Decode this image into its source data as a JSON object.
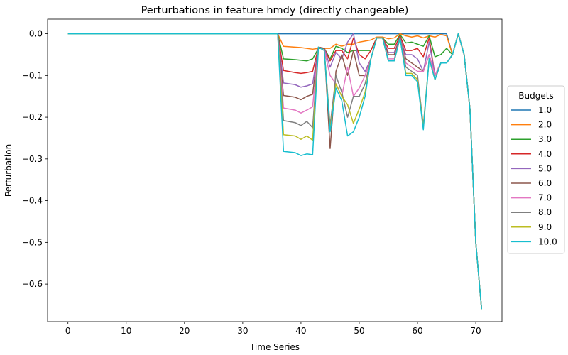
{
  "chart_data": {
    "type": "line",
    "title": "Perturbations in feature hmdy (directly changeable)",
    "xlabel": "Time Series",
    "ylabel": "Perturbation",
    "xlim": [
      -3.5,
      74.5
    ],
    "ylim": [
      -0.69,
      0.035
    ],
    "xticks": [
      0,
      10,
      20,
      30,
      40,
      50,
      60,
      70
    ],
    "yticks": [
      0.0,
      -0.1,
      -0.2,
      -0.3,
      -0.4,
      -0.5,
      -0.6
    ],
    "ytick_labels": [
      "0.0",
      "−0.1",
      "−0.2",
      "−0.3",
      "−0.4",
      "−0.5",
      "−0.6"
    ],
    "grid": false,
    "legend": {
      "title": "Budgets",
      "placement": "outside-right"
    },
    "colors": [
      "#1f77b4",
      "#ff7f0e",
      "#2ca02c",
      "#d62728",
      "#9467bd",
      "#8c564b",
      "#e377c2",
      "#7f7f7f",
      "#bcbd22",
      "#17becf"
    ],
    "series": [
      {
        "name": "1.0",
        "x": [
          0,
          36,
          65,
          66,
          67,
          68,
          69,
          70,
          71
        ],
        "values": [
          0,
          0,
          0,
          -0.05,
          0,
          -0.05,
          -0.18,
          -0.5,
          -0.66
        ]
      },
      {
        "name": "2.0",
        "x": [
          0,
          36,
          37,
          40,
          42,
          43,
          44,
          45,
          46,
          47,
          48,
          49,
          50,
          52,
          53,
          54,
          55,
          56,
          57,
          58,
          59,
          60,
          61,
          62,
          63,
          64,
          65,
          66,
          67,
          68,
          69,
          70,
          71
        ],
        "values": [
          0,
          0,
          -0.03,
          -0.033,
          -0.037,
          -0.035,
          -0.035,
          -0.035,
          -0.025,
          -0.03,
          -0.025,
          -0.025,
          -0.02,
          -0.015,
          -0.008,
          -0.008,
          -0.012,
          -0.01,
          0,
          -0.005,
          -0.008,
          -0.005,
          -0.01,
          -0.005,
          -0.008,
          -0.002,
          -0.005,
          -0.05,
          0,
          -0.05,
          -0.18,
          -0.5,
          -0.66
        ]
      },
      {
        "name": "3.0",
        "x": [
          0,
          36,
          37,
          39,
          41,
          42,
          43,
          44,
          45,
          46,
          47,
          48,
          49,
          50,
          52,
          53,
          54,
          55,
          56,
          57,
          58,
          59,
          60,
          61,
          62,
          63,
          64,
          65,
          66,
          67,
          68,
          69,
          70,
          71
        ],
        "values": [
          0,
          0,
          -0.06,
          -0.062,
          -0.065,
          -0.06,
          -0.035,
          -0.035,
          -0.06,
          -0.03,
          -0.035,
          -0.045,
          -0.04,
          -0.04,
          -0.04,
          -0.01,
          -0.01,
          -0.025,
          -0.025,
          -0.002,
          -0.022,
          -0.02,
          -0.025,
          -0.03,
          -0.005,
          -0.055,
          -0.05,
          -0.035,
          -0.05,
          0,
          -0.05,
          -0.18,
          -0.5,
          -0.66
        ]
      },
      {
        "name": "4.0",
        "x": [
          0,
          36,
          37,
          39,
          40,
          41,
          42,
          43,
          44,
          45,
          46,
          47,
          48,
          49,
          50,
          51,
          52,
          53,
          54,
          55,
          56,
          57,
          58,
          59,
          60,
          61,
          62,
          63,
          64,
          65,
          66,
          67,
          68,
          69,
          70,
          71
        ],
        "values": [
          0,
          0,
          -0.088,
          -0.093,
          -0.095,
          -0.093,
          -0.09,
          -0.032,
          -0.035,
          -0.065,
          -0.04,
          -0.04,
          -0.06,
          -0.01,
          -0.05,
          -0.06,
          -0.04,
          -0.01,
          -0.01,
          -0.035,
          -0.035,
          -0.005,
          -0.04,
          -0.04,
          -0.035,
          -0.055,
          -0.01,
          -0.1,
          -0.07,
          -0.07,
          -0.05,
          0,
          -0.05,
          -0.18,
          -0.5,
          -0.66
        ]
      },
      {
        "name": "5.0",
        "x": [
          0,
          36,
          37,
          39,
          40,
          41,
          42,
          43,
          44,
          45,
          46,
          47,
          48,
          49,
          50,
          51,
          52,
          53,
          54,
          55,
          56,
          57,
          58,
          59,
          60,
          61,
          62,
          63,
          64,
          65,
          66,
          67,
          68,
          69,
          70,
          71
        ],
        "values": [
          0,
          0,
          -0.118,
          -0.122,
          -0.128,
          -0.125,
          -0.12,
          -0.032,
          -0.035,
          -0.08,
          -0.045,
          -0.06,
          -0.02,
          0,
          -0.07,
          -0.09,
          -0.06,
          -0.01,
          -0.01,
          -0.045,
          -0.045,
          -0.01,
          -0.05,
          -0.05,
          -0.06,
          -0.09,
          -0.02,
          -0.1,
          -0.07,
          -0.07,
          -0.05,
          0,
          -0.05,
          -0.18,
          -0.5,
          -0.66
        ]
      },
      {
        "name": "6.0",
        "x": [
          0,
          36,
          37,
          39,
          40,
          41,
          42,
          43,
          44,
          45,
          46,
          47,
          48,
          49,
          50,
          51,
          52,
          53,
          54,
          55,
          56,
          57,
          58,
          59,
          60,
          61,
          62,
          63,
          64,
          65,
          66,
          67,
          68,
          69,
          70,
          71
        ],
        "values": [
          0,
          0,
          -0.148,
          -0.152,
          -0.158,
          -0.15,
          -0.145,
          -0.032,
          -0.035,
          -0.275,
          -0.09,
          -0.05,
          -0.1,
          -0.04,
          -0.1,
          -0.1,
          -0.06,
          -0.01,
          -0.01,
          -0.05,
          -0.05,
          -0.01,
          -0.06,
          -0.07,
          -0.08,
          -0.09,
          -0.05,
          -0.1,
          -0.07,
          -0.07,
          -0.05,
          0,
          -0.05,
          -0.18,
          -0.5,
          -0.66
        ]
      },
      {
        "name": "7.0",
        "x": [
          0,
          36,
          37,
          39,
          40,
          41,
          42,
          43,
          44,
          45,
          46,
          47,
          48,
          49,
          50,
          51,
          52,
          53,
          54,
          55,
          56,
          57,
          58,
          59,
          60,
          61,
          62,
          63,
          64,
          65,
          66,
          67,
          68,
          69,
          70,
          71
        ],
        "values": [
          0,
          0,
          -0.178,
          -0.183,
          -0.19,
          -0.183,
          -0.175,
          -0.032,
          -0.04,
          -0.1,
          -0.12,
          -0.15,
          -0.08,
          -0.15,
          -0.13,
          -0.1,
          -0.06,
          -0.01,
          -0.01,
          -0.06,
          -0.06,
          -0.01,
          -0.07,
          -0.08,
          -0.09,
          -0.09,
          -0.05,
          -0.1,
          -0.07,
          -0.07,
          -0.05,
          0,
          -0.05,
          -0.18,
          -0.5,
          -0.66
        ]
      },
      {
        "name": "8.0",
        "x": [
          0,
          36,
          37,
          39,
          40,
          41,
          42,
          43,
          44,
          45,
          46,
          47,
          48,
          49,
          50,
          51,
          52,
          53,
          54,
          55,
          56,
          57,
          58,
          59,
          60,
          61,
          62,
          63,
          64,
          65,
          66,
          67,
          68,
          69,
          70,
          71
        ],
        "values": [
          0,
          0,
          -0.208,
          -0.213,
          -0.22,
          -0.21,
          -0.225,
          -0.032,
          -0.04,
          -0.22,
          -0.1,
          -0.14,
          -0.2,
          -0.15,
          -0.15,
          -0.12,
          -0.06,
          -0.01,
          -0.01,
          -0.065,
          -0.065,
          -0.01,
          -0.08,
          -0.09,
          -0.1,
          -0.22,
          -0.06,
          -0.11,
          -0.07,
          -0.07,
          -0.05,
          0,
          -0.05,
          -0.18,
          -0.5,
          -0.66
        ]
      },
      {
        "name": "9.0",
        "x": [
          0,
          36,
          37,
          39,
          40,
          41,
          42,
          43,
          44,
          45,
          46,
          47,
          48,
          49,
          50,
          51,
          52,
          53,
          54,
          55,
          56,
          57,
          58,
          59,
          60,
          61,
          62,
          63,
          64,
          65,
          66,
          67,
          68,
          69,
          70,
          71
        ],
        "values": [
          0,
          0,
          -0.242,
          -0.245,
          -0.253,
          -0.245,
          -0.255,
          -0.032,
          -0.04,
          -0.23,
          -0.12,
          -0.15,
          -0.17,
          -0.215,
          -0.18,
          -0.14,
          -0.06,
          -0.01,
          -0.01,
          -0.065,
          -0.065,
          -0.01,
          -0.095,
          -0.095,
          -0.11,
          -0.225,
          -0.06,
          -0.11,
          -0.07,
          -0.07,
          -0.05,
          0,
          -0.05,
          -0.18,
          -0.5,
          -0.66
        ]
      },
      {
        "name": "10.0",
        "x": [
          0,
          36,
          37,
          39,
          40,
          41,
          42,
          43,
          44,
          45,
          46,
          47,
          48,
          49,
          50,
          51,
          52,
          53,
          54,
          55,
          56,
          57,
          58,
          59,
          60,
          61,
          62,
          63,
          64,
          65,
          66,
          67,
          68,
          69,
          70,
          71
        ],
        "values": [
          0,
          0,
          -0.282,
          -0.285,
          -0.292,
          -0.288,
          -0.29,
          -0.032,
          -0.04,
          -0.235,
          -0.13,
          -0.16,
          -0.245,
          -0.235,
          -0.2,
          -0.15,
          -0.06,
          -0.01,
          -0.01,
          -0.065,
          -0.065,
          -0.01,
          -0.1,
          -0.1,
          -0.115,
          -0.23,
          -0.06,
          -0.11,
          -0.07,
          -0.07,
          -0.05,
          0,
          -0.05,
          -0.18,
          -0.5,
          -0.66
        ]
      }
    ]
  }
}
